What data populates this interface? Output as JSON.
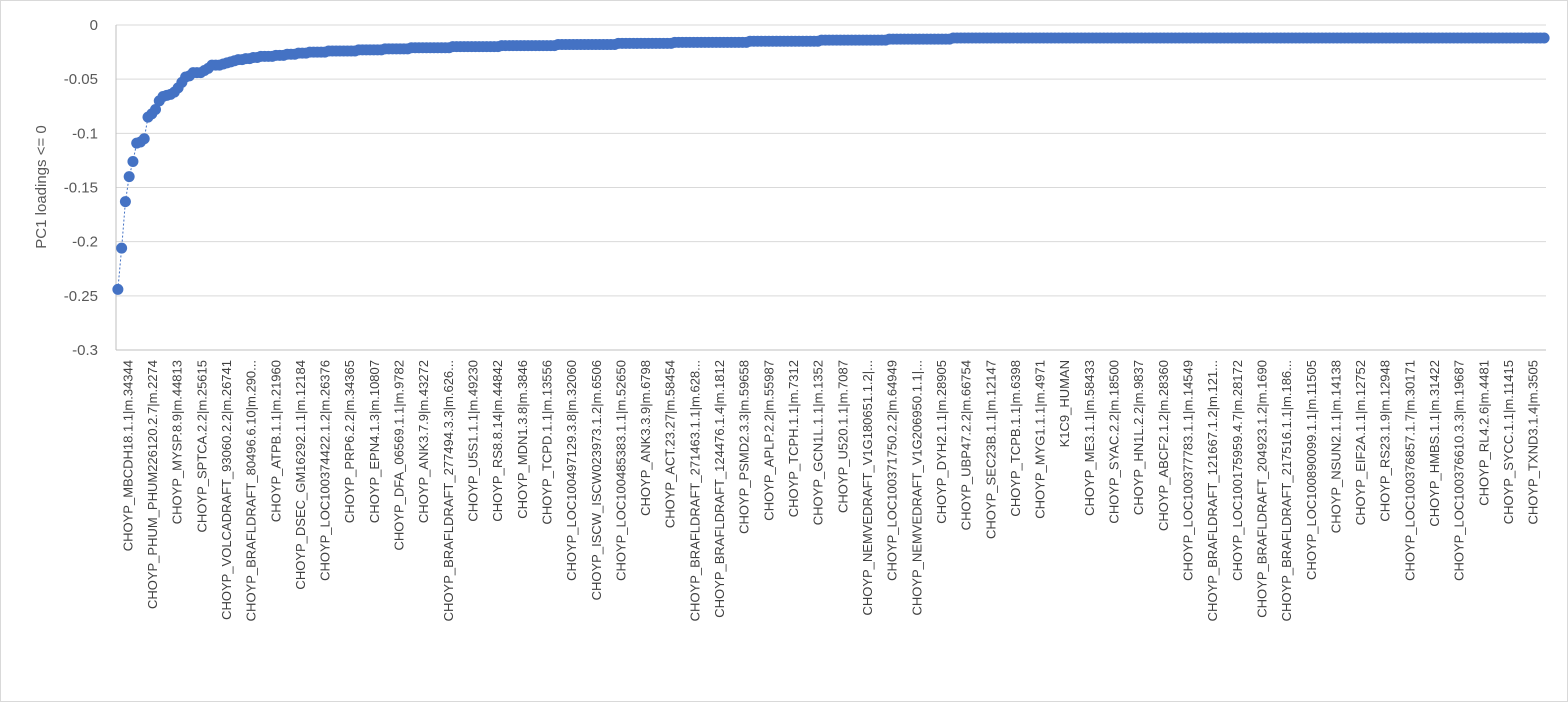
{
  "chart_data": {
    "type": "line",
    "title": "",
    "xlabel": "",
    "ylabel": "PC1 loadings <= 0",
    "ylim": [
      -0.3,
      0
    ],
    "yticks": [
      0,
      -0.05,
      -0.1,
      -0.15,
      -0.2,
      -0.25,
      -0.3
    ],
    "ytick_labels": [
      "0",
      "-0.05",
      "-0.1",
      "-0.15",
      "-0.2",
      "-0.25",
      "-0.3"
    ],
    "grid": true,
    "legend": "none",
    "marker": "circle",
    "line_style": "dotted",
    "color": "#4472C4",
    "tick_labels": [
      "CHOYP_MBCDH18.1.1|m.34344",
      "CHOYP_PHUM_PHUM226120.2.7|m.2274",
      "CHOYP_MYSP.8.9|m.44813",
      "CHOYP_SPTCA.2.2|m.25615",
      "CHOYP_VOLCADRAFT_93060.2.2|m.26741",
      "CHOYP_BRAFLDRAFT_80496.6.10|m.290...",
      "CHOYP_ATPB.1.1|m.21960",
      "CHOYP_DSEC_GM16292.1.1|m.12184",
      "CHOYP_LOC100374422.1.2|m.26376",
      "CHOYP_PRP6.2.2|m.34365",
      "CHOYP_EPN4.1.3|m.10807",
      "CHOYP_DFA_06569.1.1|m.9782",
      "CHOYP_ANK3.7.9|m.43272",
      "CHOYP_BRAFLDRAFT_277494.3.3|m.626...",
      "CHOYP_U5S1.1.1|m.49230",
      "CHOYP_RS8.8.14|m.44842",
      "CHOYP_MDN1.3.8|m.3846",
      "CHOYP_TCPD.1.1|m.13556",
      "CHOYP_LOC100497129.3.8|m.32060",
      "CHOYP_ISCW_ISCW023973.1.2|m.6506",
      "CHOYP_LOC100485383.1.1|m.52650",
      "CHOYP_ANK3.3.9|m.6798",
      "CHOYP_ACT.23.27|m.58454",
      "CHOYP_BRAFLDRAFT_271463.1.1|m.628...",
      "CHOYP_BRAFLDRAFT_124476.1.4|m.1812",
      "CHOYP_PSMD2.3.3|m.59658",
      "CHOYP_APLP.2.2|m.55987",
      "CHOYP_TCPH.1.1|m.7312",
      "CHOYP_GCN1L.1.1|m.1352",
      "CHOYP_U520.1.1|m.7087",
      "CHOYP_NEMVEDRAFT_V1G180651.1.2|...",
      "CHOYP_LOC100371750.2.2|m.64949",
      "CHOYP_NEMVEDRAFT_V1G206950.1.1|...",
      "CHOYP_DYH2.1.1|m.28905",
      "CHOYP_UBP47.2.2|m.66754",
      "CHOYP_SEC23B.1.1|m.12147",
      "CHOYP_TCPB.1.1|m.6398",
      "CHOYP_MYG1.1.1|m.4971",
      "K1C9_HUMAN",
      "CHOYP_ME3.1.1|m.58433",
      "CHOYP_SYAC.2.2|m.18500",
      "CHOYP_HN1L.2.2|m.9837",
      "CHOYP_ABCF2.1.2|m.28360",
      "CHOYP_LOC100377783.1.1|m.14549",
      "CHOYP_BRAFLDRAFT_121667.1.2|m.121...",
      "CHOYP_LOC100175959.4.7|m.28172",
      "CHOYP_BRAFLDRAFT_204923.1.2|m.1690",
      "CHOYP_BRAFLDRAFT_217516.1.1|m.186...",
      "CHOYP_LOC100890099.1.1|m.11505",
      "CHOYP_NSUN2.1.1|m.14138",
      "CHOYP_EIF2A.1.1|m.12752",
      "CHOYP_RS23.1.9|m.12948",
      "CHOYP_LOC100376857.1.7|m.30171",
      "CHOYP_HMBS.1.1|m.31422",
      "CHOYP_LOC100376610.3.3|m.19687",
      "CHOYP_RL4.2.6|m.4481",
      "CHOYP_SYCC.1.1|m.11415",
      "CHOYP_TXND3.1.4|m.3505"
    ],
    "y": [
      -0.244,
      -0.206,
      -0.163,
      -0.14,
      -0.126,
      -0.109,
      -0.108,
      -0.105,
      -0.085,
      -0.082,
      -0.078,
      -0.07,
      -0.066,
      -0.065,
      -0.064,
      -0.062,
      -0.058,
      -0.053,
      -0.048,
      -0.047,
      -0.044,
      -0.044,
      -0.044,
      -0.042,
      -0.04,
      -0.037,
      -0.037,
      -0.037,
      -0.036,
      -0.035,
      -0.034,
      -0.033,
      -0.032,
      -0.032,
      -0.031,
      -0.031,
      -0.03,
      -0.03,
      -0.029,
      -0.029,
      -0.029,
      -0.029,
      -0.028,
      -0.028,
      -0.028,
      -0.027,
      -0.027,
      -0.027,
      -0.026,
      -0.026,
      -0.026,
      -0.025,
      -0.025,
      -0.025,
      -0.025,
      -0.025,
      -0.024,
      -0.024,
      -0.024,
      -0.024,
      -0.024,
      -0.024,
      -0.024,
      -0.024,
      -0.023,
      -0.023,
      -0.023,
      -0.023,
      -0.023,
      -0.023,
      -0.023,
      -0.022,
      -0.022,
      -0.022,
      -0.022,
      -0.022,
      -0.022,
      -0.022,
      -0.021,
      -0.021,
      -0.021,
      -0.021,
      -0.021,
      -0.021,
      -0.021,
      -0.021,
      -0.021,
      -0.021,
      -0.021,
      -0.02,
      -0.02,
      -0.02,
      -0.02,
      -0.02,
      -0.02,
      -0.02,
      -0.02,
      -0.02,
      -0.02,
      -0.02,
      -0.02,
      -0.02,
      -0.019,
      -0.019,
      -0.019,
      -0.019,
      -0.019,
      -0.019,
      -0.019,
      -0.019,
      -0.019,
      -0.019,
      -0.019,
      -0.019,
      -0.019,
      -0.019,
      -0.019,
      -0.018,
      -0.018,
      -0.018,
      -0.018,
      -0.018,
      -0.018,
      -0.018,
      -0.018,
      -0.018,
      -0.018,
      -0.018,
      -0.018,
      -0.018,
      -0.018,
      -0.018,
      -0.018,
      -0.017,
      -0.017,
      -0.017,
      -0.017,
      -0.017,
      -0.017,
      -0.017,
      -0.017,
      -0.017,
      -0.017,
      -0.017,
      -0.017,
      -0.017,
      -0.017,
      -0.017,
      -0.016,
      -0.016,
      -0.016,
      -0.016,
      -0.016,
      -0.016,
      -0.016,
      -0.016,
      -0.016,
      -0.016,
      -0.016,
      -0.016,
      -0.016,
      -0.016,
      -0.016,
      -0.016,
      -0.016,
      -0.016,
      -0.016,
      -0.016,
      -0.015,
      -0.015,
      -0.015,
      -0.015,
      -0.015,
      -0.015,
      -0.015,
      -0.015,
      -0.015,
      -0.015,
      -0.015,
      -0.015,
      -0.015,
      -0.015,
      -0.015,
      -0.015,
      -0.015,
      -0.015,
      -0.015,
      -0.014,
      -0.014,
      -0.014,
      -0.014,
      -0.014,
      -0.014,
      -0.014,
      -0.014,
      -0.014,
      -0.014,
      -0.014,
      -0.014,
      -0.014,
      -0.014,
      -0.014,
      -0.014,
      -0.014,
      -0.014,
      -0.013,
      -0.013,
      -0.013,
      -0.013,
      -0.013,
      -0.013,
      -0.013,
      -0.013,
      -0.013,
      -0.013,
      -0.013,
      -0.013,
      -0.013,
      -0.013,
      -0.013,
      -0.013,
      -0.013,
      -0.012,
      -0.012,
      -0.012,
      -0.012,
      -0.012,
      -0.012,
      -0.012,
      -0.012,
      -0.012,
      -0.012,
      -0.012,
      -0.012,
      -0.012,
      -0.012,
      -0.012,
      -0.012,
      -0.012,
      -0.012,
      -0.012,
      -0.012,
      -0.012,
      -0.012,
      -0.012,
      -0.012,
      -0.012,
      -0.012,
      -0.012,
      -0.012,
      -0.012,
      -0.012,
      -0.012,
      -0.012,
      -0.012,
      -0.012,
      -0.012,
      -0.012,
      -0.012,
      -0.012,
      -0.012,
      -0.012,
      -0.012,
      -0.012,
      -0.012,
      -0.012,
      -0.012,
      -0.012,
      -0.012,
      -0.012,
      -0.012,
      -0.012,
      -0.012,
      -0.012,
      -0.012,
      -0.012,
      -0.012,
      -0.012,
      -0.012,
      -0.012,
      -0.012,
      -0.012,
      -0.012,
      -0.012,
      -0.012,
      -0.012,
      -0.012,
      -0.012,
      -0.012,
      -0.012,
      -0.012,
      -0.012,
      -0.012,
      -0.012,
      -0.012,
      -0.012,
      -0.012,
      -0.012,
      -0.012,
      -0.012,
      -0.012,
      -0.012,
      -0.012,
      -0.012,
      -0.012,
      -0.012,
      -0.012,
      -0.012,
      -0.012,
      -0.012,
      -0.012,
      -0.012,
      -0.012,
      -0.012,
      -0.012,
      -0.012,
      -0.012,
      -0.012,
      -0.012,
      -0.012,
      -0.012,
      -0.012,
      -0.012,
      -0.012,
      -0.012,
      -0.012,
      -0.012,
      -0.012,
      -0.012,
      -0.012,
      -0.012,
      -0.012,
      -0.012,
      -0.012,
      -0.012,
      -0.012,
      -0.012,
      -0.012,
      -0.012,
      -0.012,
      -0.012,
      -0.012,
      -0.012,
      -0.012,
      -0.012,
      -0.012,
      -0.012,
      -0.012,
      -0.012,
      -0.012,
      -0.012,
      -0.012,
      -0.012,
      -0.012,
      -0.012,
      -0.012,
      -0.012,
      -0.012,
      -0.012,
      -0.012,
      -0.012,
      -0.012,
      -0.012,
      -0.012,
      -0.012,
      -0.012,
      -0.012,
      -0.012,
      -0.012,
      -0.012,
      -0.012,
      -0.012,
      -0.012,
      -0.012,
      -0.012,
      -0.012,
      -0.012,
      -0.012,
      -0.012,
      -0.012
    ]
  }
}
